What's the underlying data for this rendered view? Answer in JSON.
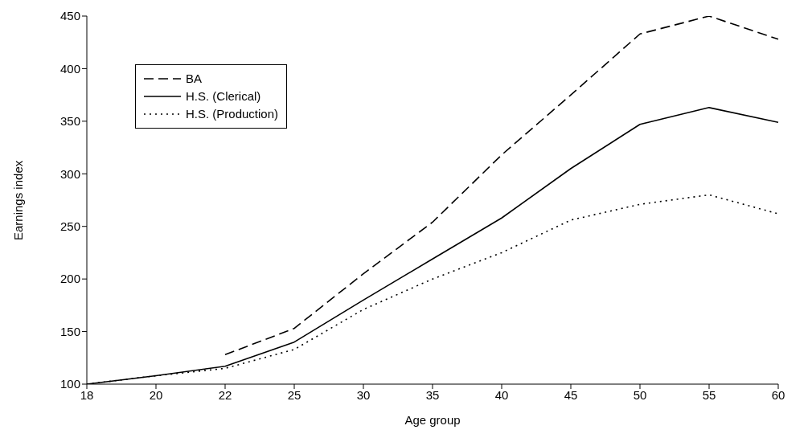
{
  "chart_data": {
    "type": "line",
    "xlabel": "Age group",
    "ylabel": "Earnings index",
    "categories": [
      "18",
      "20",
      "22",
      "25",
      "30",
      "35",
      "40",
      "45",
      "50",
      "55",
      "60"
    ],
    "series": [
      {
        "name": "BA",
        "color": "#000000",
        "line_style": "dashed",
        "values": [
          null,
          null,
          128,
          153,
          205,
          254,
          318,
          375,
          433,
          450,
          428
        ]
      },
      {
        "name": "H.S. (Clerical)",
        "color": "#000000",
        "line_style": "solid",
        "values": [
          100,
          108,
          117,
          140,
          180,
          219,
          258,
          305,
          347,
          363,
          349
        ]
      },
      {
        "name": "H.S. (Production)",
        "color": "#000000",
        "line_style": "dotted",
        "values": [
          100,
          108,
          115,
          133,
          171,
          200,
          225,
          256,
          271,
          280,
          262
        ]
      }
    ],
    "ylim": [
      100,
      450
    ],
    "yticks": [
      100,
      150,
      200,
      250,
      300,
      350,
      400,
      450
    ],
    "legend": "top left",
    "marker": "none"
  }
}
